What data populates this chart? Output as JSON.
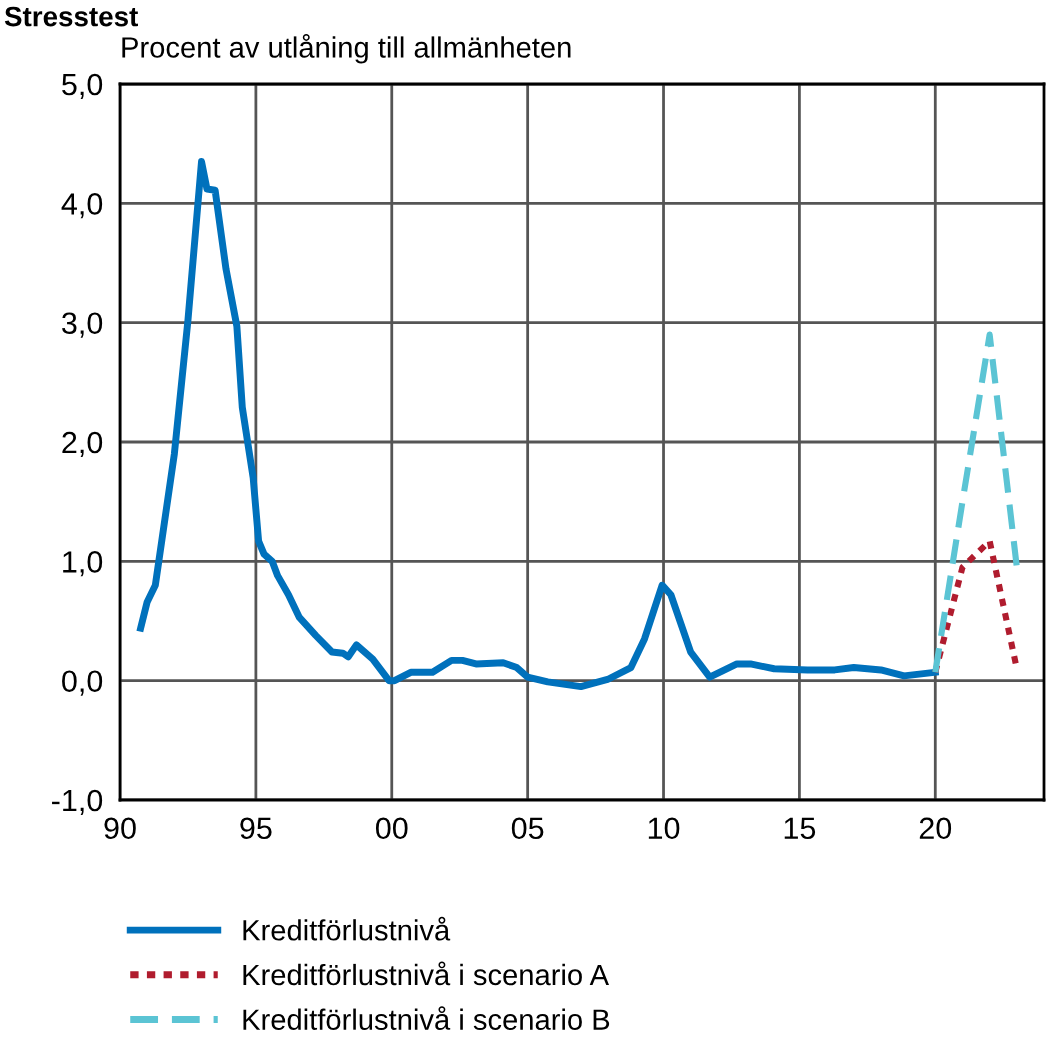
{
  "chart_data": {
    "type": "line",
    "title": "Stresstest",
    "subtitle": "Procent av utlåning till allmänheten",
    "series": [
      {
        "name": "Kreditförlustnivå",
        "color": "#0071bc",
        "line_style": "solid",
        "x": [
          1990.76,
          1991.0,
          1991.3,
          1992.0,
          1992.5,
          1993.0,
          1993.2,
          1993.5,
          1993.9,
          1994.3,
          1994.5,
          1994.9,
          1995.1,
          1995.3,
          1995.6,
          1995.8,
          1996.2,
          1996.6,
          1997.2,
          1997.8,
          1998.2,
          1998.4,
          1998.7,
          1999.3,
          1999.9,
          2000.1,
          2000.7,
          2001.5,
          2002.2,
          2002.6,
          2003.1,
          2004.1,
          2004.6,
          2005.0,
          2005.74,
          2006.96,
          2007.94,
          2008.8,
          2009.3,
          2009.95,
          2010.27,
          2011.0,
          2011.7,
          2012.7,
          2013.2,
          2014.07,
          2015.3,
          2016.3,
          2017.0,
          2018.0,
          2018.85,
          2020.0
        ],
        "values": [
          0.44,
          0.66,
          0.8,
          1.9,
          3.02,
          4.35,
          4.12,
          4.11,
          3.45,
          2.97,
          2.29,
          1.7,
          1.17,
          1.06,
          1.0,
          0.88,
          0.72,
          0.53,
          0.38,
          0.24,
          0.23,
          0.2,
          0.3,
          0.18,
          0.0,
          0.0,
          0.07,
          0.07,
          0.17,
          0.17,
          0.14,
          0.15,
          0.11,
          0.03,
          -0.01,
          -0.05,
          0.01,
          0.11,
          0.35,
          0.8,
          0.72,
          0.24,
          0.03,
          0.14,
          0.14,
          0.1,
          0.09,
          0.09,
          0.11,
          0.09,
          0.04,
          0.07
        ]
      },
      {
        "name": "Kreditförlustnivå i scenario A",
        "color": "#b01c2e",
        "line_style": "dotted",
        "x": [
          2020,
          2021,
          2022,
          2023
        ],
        "values": [
          0.07,
          0.95,
          1.17,
          0.1
        ]
      },
      {
        "name": "Kreditförlustnivå i scenario B",
        "color": "#5bc4d4",
        "line_style": "dashed",
        "x": [
          2020,
          2021,
          2022,
          2023
        ],
        "values": [
          0.07,
          1.5,
          2.9,
          0.95
        ]
      }
    ],
    "xlim": [
      1990,
      2024
    ],
    "xticks": [
      {
        "value": 1990,
        "label": "90"
      },
      {
        "value": 1995,
        "label": "95"
      },
      {
        "value": 2000,
        "label": "00"
      },
      {
        "value": 2005,
        "label": "05"
      },
      {
        "value": 2010,
        "label": "10"
      },
      {
        "value": 2015,
        "label": "15"
      },
      {
        "value": 2020,
        "label": "20"
      }
    ],
    "ylim": [
      -1,
      5
    ],
    "yticks": [
      {
        "value": -1,
        "label": "-1,0"
      },
      {
        "value": 0,
        "label": "0,0"
      },
      {
        "value": 1,
        "label": "1,0"
      },
      {
        "value": 2,
        "label": "2,0"
      },
      {
        "value": 3,
        "label": "3,0"
      },
      {
        "value": 4,
        "label": "4,0"
      },
      {
        "value": 5,
        "label": "5,0"
      }
    ],
    "grid": true,
    "legend": "bottom"
  }
}
